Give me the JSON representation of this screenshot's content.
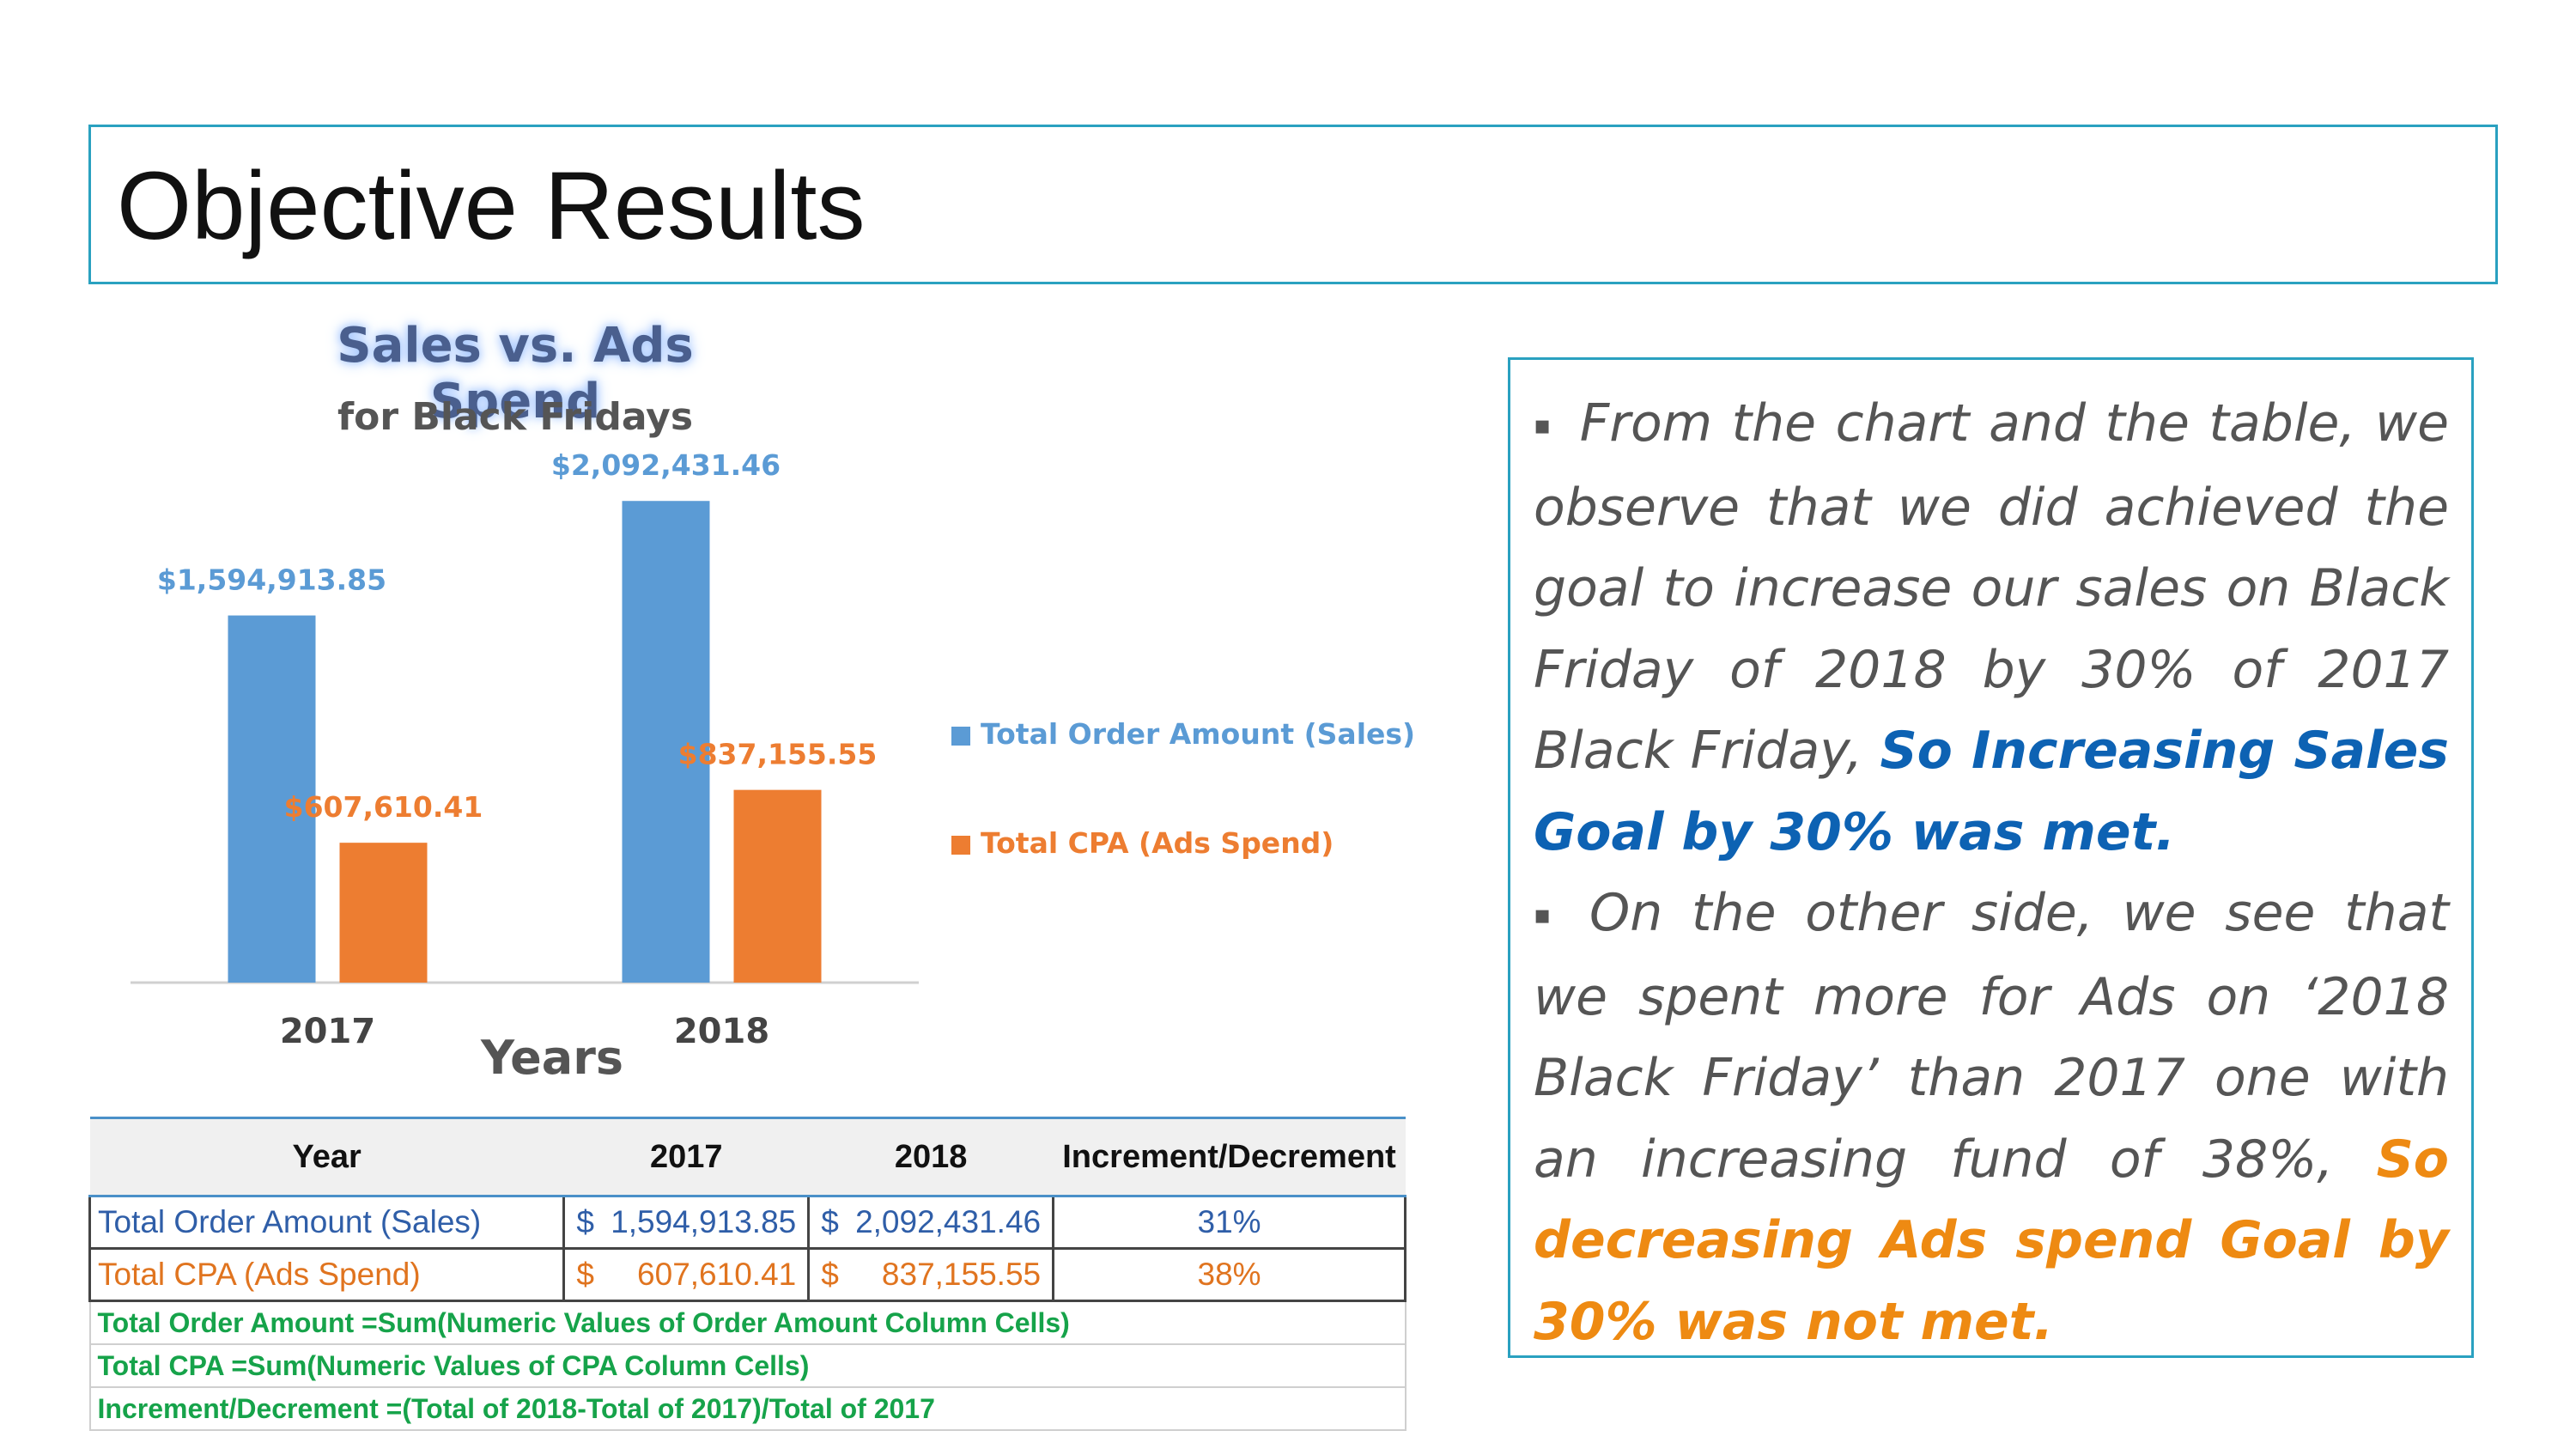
{
  "slide": {
    "title": "Objective Results"
  },
  "chart_data": {
    "type": "bar",
    "title": "Sales vs. Ads Spend",
    "subtitle": "for Black Fridays",
    "xlabel": "Years",
    "ylabel": "",
    "categories": [
      "2017",
      "2018"
    ],
    "series": [
      {
        "name": "Total Order Amount (Sales)",
        "values": [
          1594913.85,
          2092431.46
        ],
        "labels": [
          "$1,594,913.85",
          "$2,092,431.46"
        ],
        "color": "#5b9bd5"
      },
      {
        "name": "Total CPA (Ads Spend)",
        "values": [
          607610.41,
          837155.55
        ],
        "labels": [
          "$607,610.41",
          "$837,155.55"
        ],
        "color": "#ed7d31"
      }
    ],
    "ylim": [
      0,
      2500000
    ],
    "grid": false,
    "legend": "right"
  },
  "table": {
    "headers": [
      "Year",
      "2017",
      "2018",
      "Increment/Decrement"
    ],
    "rows": [
      {
        "label": "Total Order Amount (Sales)",
        "v2017": "1,594,913.85",
        "v2018": "2,092,431.46",
        "change": "31%"
      },
      {
        "label": "Total CPA (Ads Spend)",
        "v2017": "607,610.41",
        "v2018": "837,155.55",
        "change": "38%"
      }
    ],
    "currency": "$",
    "notes": [
      "Total Order Amount =Sum(Numeric Values of Order Amount Column Cells)",
      "Total CPA =Sum(Numeric Values of CPA Column Cells)",
      "Increment/Decrement =(Total of 2018-Total of 2017)/Total of 2017"
    ]
  },
  "side_panel": {
    "bullet": "▪",
    "p1_text": "From the chart and the table, we observe that we did achieved the goal to increase our sales on Black Friday of 2018 by 30% of 2017 Black Friday,",
    "p1_highlight": "So Increasing Sales Goal by 30% was met.",
    "p2_text": "On the other side, we see that we spent more for Ads on ‘2018 Black Friday’ than 2017 one with an increasing fund of 38%,",
    "p2_highlight": "So decreasing Ads spend Goal by 30% was not met."
  }
}
